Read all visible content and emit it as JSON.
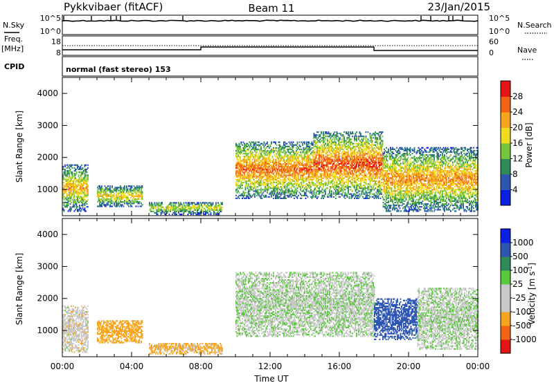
{
  "header": {
    "title_left": "Pykkvibaer (fitACF)",
    "title_center": "Beam 11",
    "title_right": "23/Jan/2015"
  },
  "status_panel": {
    "nsky_label": "N.Sky",
    "nsky_ticks": [
      "10^5",
      "10^0"
    ],
    "nsearch_label": "N.Search",
    "freq_label": "Freq.",
    "freq_unit": "[MHz]",
    "freq_ticks": [
      "18",
      "8"
    ],
    "nave_label": "Nave",
    "nave_ticks": [
      "60",
      "0"
    ],
    "cpid_label": "CPID",
    "cpid_text": "normal (fast stereo) 153"
  },
  "chart_data": [
    {
      "type": "heatmap",
      "variable": "Power",
      "xlabel": "",
      "ylabel": "Slant Range [km]",
      "xlim": [
        "00:00",
        "24:00"
      ],
      "ylim": [
        180,
        4500
      ],
      "yticks": [
        1000,
        2000,
        3000,
        4000
      ],
      "colorbar_label": "Power [dB]",
      "colorbar_ticks": [
        "4",
        "8",
        "12",
        "16",
        "20",
        "24",
        "28"
      ],
      "colorbar_colors": [
        "#0a1ee6",
        "#2d55b4",
        "#2e8c5a",
        "#74c43c",
        "#f0dc1e",
        "#f5a51e",
        "#f06414",
        "#e61414"
      ],
      "echo_regions": [
        {
          "t0": 0.0,
          "t1": 1.5,
          "r0": 300,
          "r1": 1750,
          "peak": 22
        },
        {
          "t0": 2.0,
          "t1": 4.6,
          "r0": 450,
          "r1": 1100,
          "peak": 20
        },
        {
          "t0": 5.0,
          "t1": 9.2,
          "r0": 200,
          "r1": 600,
          "peak": 18
        },
        {
          "t0": 10.0,
          "t1": 14.5,
          "r0": 700,
          "r1": 2500,
          "peak": 26
        },
        {
          "t0": 14.5,
          "t1": 18.5,
          "r0": 700,
          "r1": 2800,
          "peak": 28
        },
        {
          "t0": 18.5,
          "t1": 24.0,
          "r0": 300,
          "r1": 2300,
          "peak": 24
        }
      ]
    },
    {
      "type": "heatmap",
      "variable": "Velocity",
      "xlabel": "Time UT",
      "ylabel": "Slant Range [km]",
      "xlim": [
        "00:00",
        "24:00"
      ],
      "ylim": [
        180,
        4500
      ],
      "xticks": [
        "00:00",
        "04:00",
        "08:00",
        "12:00",
        "16:00",
        "20:00",
        "00:00"
      ],
      "yticks": [
        1000,
        2000,
        3000,
        4000
      ],
      "colorbar_label": "Velocity [m s^-1]",
      "colorbar_ticks": [
        "-1000",
        "-500",
        "-100",
        "-25",
        "25",
        "100",
        "500",
        "1000"
      ],
      "colorbar_colors": [
        "#e61414",
        "#f06414",
        "#f5a51e",
        "#c8c8c8",
        "#c8c8c8",
        "#5ac83c",
        "#2e8c5a",
        "#2d55b4",
        "#0a1ee6"
      ],
      "echo_regions": [
        {
          "t0": 0.0,
          "t1": 1.5,
          "r0": 300,
          "r1": 1750,
          "vel": -50
        },
        {
          "t0": 2.0,
          "t1": 4.6,
          "r0": 600,
          "r1": 1300,
          "vel": -300
        },
        {
          "t0": 5.0,
          "t1": 9.2,
          "r0": 250,
          "r1": 600,
          "vel": -150
        },
        {
          "t0": 10.0,
          "t1": 18.0,
          "r0": 800,
          "r1": 2800,
          "vel": 0
        },
        {
          "t0": 18.0,
          "t1": 20.5,
          "r0": 700,
          "r1": 2000,
          "vel": 600
        },
        {
          "t0": 20.5,
          "t1": 24.0,
          "r0": 400,
          "r1": 2300,
          "vel": 0
        }
      ]
    }
  ]
}
